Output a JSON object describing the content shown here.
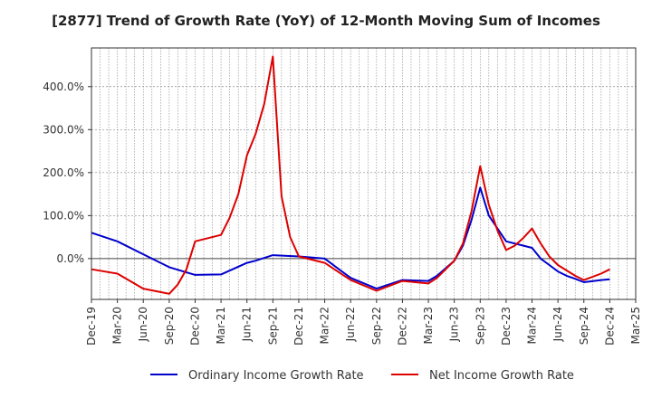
{
  "chart_data": {
    "type": "line",
    "title": "[2877]  Trend of Growth Rate (YoY) of 12-Month Moving Sum of Incomes",
    "xlabel": "",
    "ylabel": "",
    "ylim": [
      -95,
      490
    ],
    "yticks": [
      0,
      100,
      200,
      300,
      400
    ],
    "ytick_labels": [
      "0.0%",
      "100.0%",
      "200.0%",
      "300.0%",
      "400.0%"
    ],
    "x_tick_labels": [
      "Dec-19",
      "Mar-20",
      "Jun-20",
      "Sep-20",
      "Dec-20",
      "Mar-21",
      "Jun-21",
      "Sep-21",
      "Dec-21",
      "Mar-22",
      "Jun-22",
      "Sep-22",
      "Dec-22",
      "Mar-23",
      "Jun-23",
      "Sep-23",
      "Dec-23",
      "Mar-24",
      "Jun-24",
      "Sep-24",
      "Dec-24",
      "Mar-25"
    ],
    "x_range_months": [
      0,
      63
    ],
    "grid": true,
    "legend_position": "bottom",
    "series": [
      {
        "name": "Ordinary Income Growth Rate",
        "color": "#0000cc",
        "x": [
          0,
          3,
          6,
          9,
          12,
          15,
          18,
          19,
          21,
          24,
          27,
          30,
          33,
          36,
          39,
          40,
          42,
          43,
          44,
          45,
          46,
          48,
          51,
          52,
          53,
          54,
          55,
          56,
          57,
          59,
          60
        ],
        "values": [
          60,
          40,
          10,
          -20,
          -38,
          -37,
          -10,
          -5,
          8,
          5,
          0,
          -45,
          -70,
          -50,
          -52,
          -40,
          -5,
          30,
          90,
          165,
          100,
          40,
          25,
          0,
          -15,
          -30,
          -40,
          -47,
          -55,
          -50,
          -48
        ]
      },
      {
        "name": "Net Income Growth Rate",
        "color": "#dd0000",
        "x": [
          0,
          3,
          6,
          8,
          9,
          10,
          11,
          12,
          15,
          16,
          17,
          18,
          19,
          20,
          21,
          22,
          23,
          24,
          27,
          30,
          33,
          36,
          39,
          40,
          42,
          43,
          44,
          45,
          46,
          47,
          48,
          49,
          50,
          51,
          52,
          53,
          54,
          56,
          57,
          59,
          60
        ],
        "values": [
          -25,
          -35,
          -70,
          -78,
          -82,
          -60,
          -25,
          40,
          55,
          95,
          150,
          240,
          290,
          360,
          470,
          145,
          50,
          5,
          -10,
          -50,
          -75,
          -52,
          -58,
          -45,
          -5,
          35,
          110,
          215,
          125,
          65,
          20,
          30,
          48,
          70,
          35,
          5,
          -15,
          -40,
          -50,
          -35,
          -25
        ]
      }
    ]
  }
}
